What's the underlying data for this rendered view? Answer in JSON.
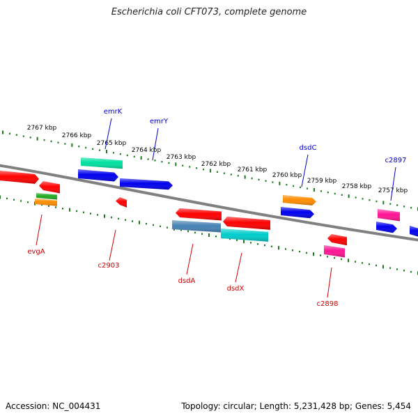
{
  "title": "Escherichia coli CFT073, complete genome",
  "accession": "Accession: NC_004431",
  "summary": "Topology: circular; Length: 5,231,428 bp; Genes: 5,454",
  "kbp_ticks": [
    "2767 kbp",
    "2766 kbp",
    "2765 kbp",
    "2764 kbp",
    "2763 kbp",
    "2762 kbp",
    "2761 kbp",
    "2760 kbp",
    "2759 kbp",
    "2758 kbp",
    "2757 kbp"
  ],
  "genes_top": [
    "emrK",
    "emrY",
    "dsdC",
    "c2897"
  ],
  "genes_bottom": [
    "evgA",
    "c2903",
    "dsdA",
    "dsdX",
    "c2898"
  ],
  "colors": {
    "top_label": "#0000cc",
    "bottom_label": "#cc0000",
    "tick": "#1a7a1a",
    "backbone": "#808080"
  },
  "features": [
    {
      "strand": "top",
      "color": "#00e0a0"
    },
    {
      "strand": "top",
      "color": "#0000ee"
    },
    {
      "strand": "top",
      "color": "#0000ee"
    },
    {
      "strand": "top",
      "color": "#ff8c00"
    },
    {
      "strand": "top",
      "color": "#0000ee"
    },
    {
      "strand": "top",
      "color": "#ff1493"
    },
    {
      "strand": "top",
      "color": "#0000ee"
    },
    {
      "strand": "top",
      "color": "#0000ee"
    },
    {
      "strand": "bottom",
      "color": "#ff0000"
    },
    {
      "strand": "bottom",
      "color": "#ff0000"
    },
    {
      "strand": "bottom",
      "color": "#22aa22"
    },
    {
      "strand": "bottom",
      "color": "#ff8c00"
    },
    {
      "strand": "bottom",
      "color": "#ff0000"
    },
    {
      "strand": "bottom",
      "color": "#ff0000"
    },
    {
      "strand": "bottom",
      "color": "#4682b4"
    },
    {
      "strand": "bottom",
      "color": "#ff0000"
    },
    {
      "strand": "bottom",
      "color": "#00cccc"
    },
    {
      "strand": "bottom",
      "color": "#ff0000"
    },
    {
      "strand": "bottom",
      "color": "#ff1493"
    }
  ]
}
